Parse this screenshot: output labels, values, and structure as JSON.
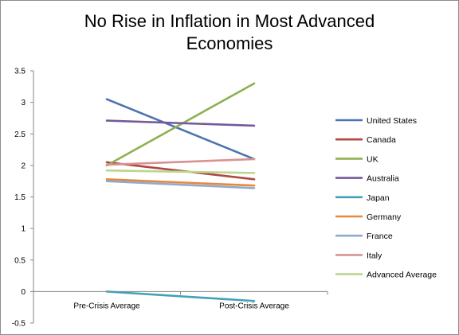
{
  "chart_data": {
    "type": "line",
    "title_line1": "No Rise in Inflation in Most Advanced",
    "title_line2": "Economies",
    "categories": [
      "Pre-Crisis Average",
      "Post-Crisis Average"
    ],
    "ylim": [
      -0.5,
      3.5
    ],
    "yticks": [
      "3.5",
      "3",
      "2.5",
      "2",
      "1.5",
      "1",
      "0.5",
      "0",
      "-0.5"
    ],
    "grid": false,
    "legend_position": "right",
    "series": [
      {
        "name": "United States",
        "values": [
          3.05,
          2.1
        ],
        "color": "#4a74b0"
      },
      {
        "name": "Canada",
        "values": [
          2.05,
          1.78
        ],
        "color": "#b04744"
      },
      {
        "name": "UK",
        "values": [
          2.0,
          3.3
        ],
        "color": "#8eb04f"
      },
      {
        "name": "Australia",
        "values": [
          2.71,
          2.63
        ],
        "color": "#76599a"
      },
      {
        "name": "Japan",
        "values": [
          0.0,
          -0.15
        ],
        "color": "#42a0b8"
      },
      {
        "name": "Germany",
        "values": [
          1.78,
          1.68
        ],
        "color": "#e8883a"
      },
      {
        "name": "France",
        "values": [
          1.75,
          1.64
        ],
        "color": "#8faad0"
      },
      {
        "name": "Italy",
        "values": [
          2.01,
          2.1
        ],
        "color": "#d89292"
      },
      {
        "name": "Advanced Average",
        "values": [
          1.92,
          1.88
        ],
        "color": "#bcd68c"
      }
    ]
  }
}
